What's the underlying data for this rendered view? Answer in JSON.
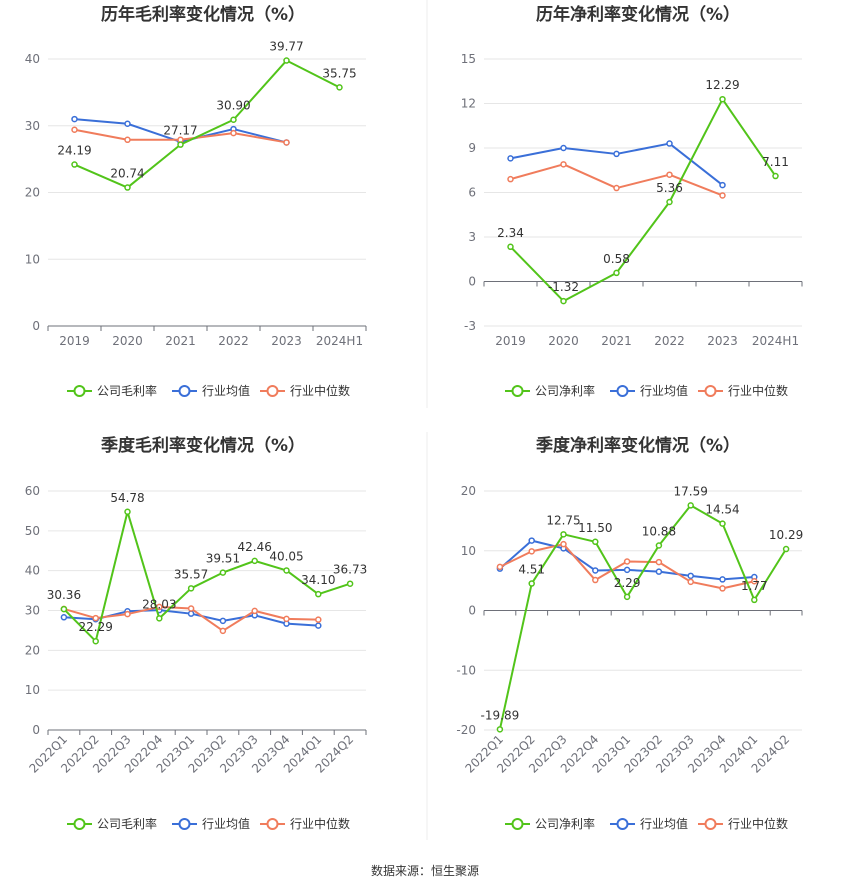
{
  "source": "数据来源：恒生聚源",
  "colors": {
    "company": "#52c41a",
    "avg": "#3a6fd8",
    "median": "#f07c5c",
    "grid": "#e6e6e6",
    "axis": "#6e7079"
  },
  "chart_data": [
    {
      "type": "line",
      "title": "历年毛利率变化情况（%）",
      "categories": [
        "2019",
        "2020",
        "2021",
        "2022",
        "2023",
        "2024H1"
      ],
      "ylim": [
        0,
        40
      ],
      "yticks": [
        "0",
        "10",
        "20",
        "30",
        "40"
      ],
      "series": [
        {
          "name": "公司毛利率",
          "color": "#52c41a",
          "values": [
            24.19,
            20.74,
            27.17,
            30.9,
            39.77,
            35.75
          ],
          "labels": [
            "24.19",
            "20.74",
            "27.17",
            "30.90",
            "39.77",
            "35.75"
          ]
        },
        {
          "name": "行业均值",
          "color": "#3a6fd8",
          "values": [
            31.0,
            30.3,
            27.6,
            29.5,
            27.5,
            null
          ]
        },
        {
          "name": "行业中位数",
          "color": "#f07c5c",
          "values": [
            29.4,
            27.9,
            27.9,
            28.9,
            27.5,
            null
          ]
        }
      ],
      "legend": "bottom"
    },
    {
      "type": "line",
      "title": "历年净利率变化情况（%）",
      "categories": [
        "2019",
        "2020",
        "2021",
        "2022",
        "2023",
        "2024H1"
      ],
      "ylim": [
        -3,
        15
      ],
      "yticks": [
        "-3",
        "0",
        "3",
        "6",
        "9",
        "12",
        "15"
      ],
      "series": [
        {
          "name": "公司净利率",
          "color": "#52c41a",
          "values": [
            2.34,
            -1.32,
            0.58,
            5.36,
            12.29,
            7.11
          ],
          "labels": [
            "2.34",
            "-1.32",
            "0.58",
            "5.36",
            "12.29",
            "7.11"
          ]
        },
        {
          "name": "行业均值",
          "color": "#3a6fd8",
          "values": [
            8.3,
            9.0,
            8.6,
            9.3,
            6.5,
            null
          ]
        },
        {
          "name": "行业中位数",
          "color": "#f07c5c",
          "values": [
            6.9,
            7.9,
            6.3,
            7.2,
            5.8,
            null
          ]
        }
      ],
      "legend": "bottom"
    },
    {
      "type": "line",
      "title": "季度毛利率变化情况（%）",
      "categories": [
        "2022Q1",
        "2022Q2",
        "2022Q3",
        "2022Q4",
        "2023Q1",
        "2023Q2",
        "2023Q3",
        "2023Q4",
        "2024Q1",
        "2024Q2"
      ],
      "ylim": [
        0,
        60
      ],
      "yticks": [
        "0",
        "10",
        "20",
        "30",
        "40",
        "50",
        "60"
      ],
      "series": [
        {
          "name": "公司毛利率",
          "color": "#52c41a",
          "values": [
            30.36,
            22.29,
            54.78,
            28.03,
            35.57,
            39.51,
            42.46,
            40.05,
            34.1,
            36.73
          ],
          "labels": [
            "30.36",
            "22.29",
            "54.78",
            "28.03",
            "35.57",
            "39.51",
            "42.46",
            "40.05",
            "34.10",
            "36.73"
          ]
        },
        {
          "name": "行业均值",
          "color": "#3a6fd8",
          "values": [
            28.3,
            27.8,
            29.8,
            30.1,
            29.2,
            27.4,
            28.8,
            26.7,
            26.2,
            null
          ]
        },
        {
          "name": "行业中位数",
          "color": "#f07c5c",
          "values": [
            30.4,
            28.1,
            29.1,
            30.9,
            30.5,
            24.9,
            29.9,
            27.9,
            27.7,
            null
          ]
        }
      ],
      "legend": "bottom"
    },
    {
      "type": "line",
      "title": "季度净利率变化情况（%）",
      "categories": [
        "2022Q1",
        "2022Q2",
        "2022Q3",
        "2022Q4",
        "2023Q1",
        "2023Q2",
        "2023Q3",
        "2023Q4",
        "2024Q1",
        "2024Q2"
      ],
      "ylim": [
        -20,
        20
      ],
      "yticks": [
        "-20",
        "-10",
        "0",
        "10",
        "20"
      ],
      "series": [
        {
          "name": "公司净利率",
          "color": "#52c41a",
          "values": [
            -19.89,
            4.51,
            12.75,
            11.5,
            2.29,
            10.88,
            17.59,
            14.54,
            1.77,
            10.29
          ],
          "labels": [
            "-19.89",
            "4.51",
            "12.75",
            "11.50",
            "2.29",
            "10.88",
            "17.59",
            "14.54",
            "1.77",
            "10.29"
          ]
        },
        {
          "name": "行业均值",
          "color": "#3a6fd8",
          "values": [
            7.0,
            11.7,
            10.4,
            6.7,
            6.8,
            6.5,
            5.8,
            5.2,
            5.6,
            null
          ]
        },
        {
          "name": "行业中位数",
          "color": "#f07c5c",
          "values": [
            7.3,
            9.9,
            11.1,
            5.1,
            8.2,
            8.1,
            4.8,
            3.7,
            4.9,
            null
          ]
        }
      ],
      "legend": "bottom"
    }
  ]
}
